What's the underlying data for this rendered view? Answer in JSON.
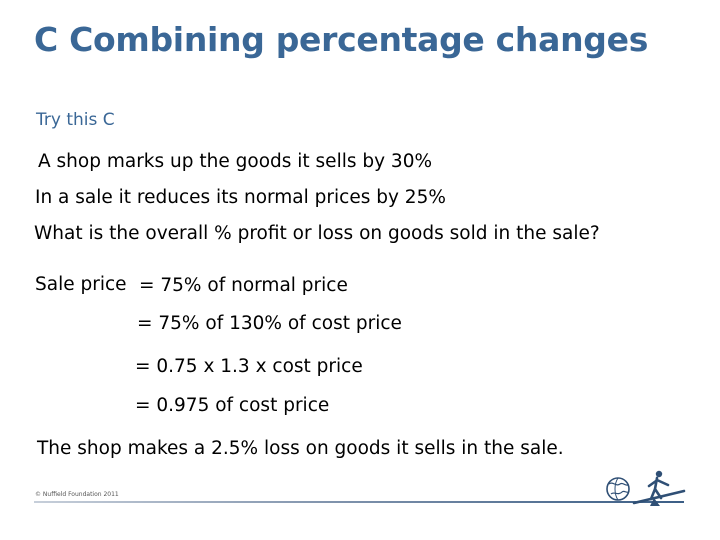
{
  "slide": {
    "title": "C  Combining percentage changes",
    "subtitle": "Try this C",
    "problem": [
      "A shop marks up the goods it sells by 30%",
      "In a sale it reduces its normal prices by 25%",
      "What is the overall % profit or loss on goods sold in the sale?"
    ],
    "working": {
      "label": "Sale price",
      "steps": [
        "= 75% of normal price",
        "= 75% of 130% of cost price",
        "= 0.75 x  1.3 x cost price",
        "= 0.975 of cost price"
      ]
    },
    "conclusion": "The shop makes a 2.5% loss on goods it sells in the sale.",
    "footer": {
      "copyright": "© Nuffield Foundation 2011"
    }
  },
  "colors": {
    "title": "#3a6796",
    "body": "#000000",
    "logo": "#2f4f75"
  },
  "icons": [
    "globe-icon",
    "figure-on-seesaw-icon"
  ]
}
